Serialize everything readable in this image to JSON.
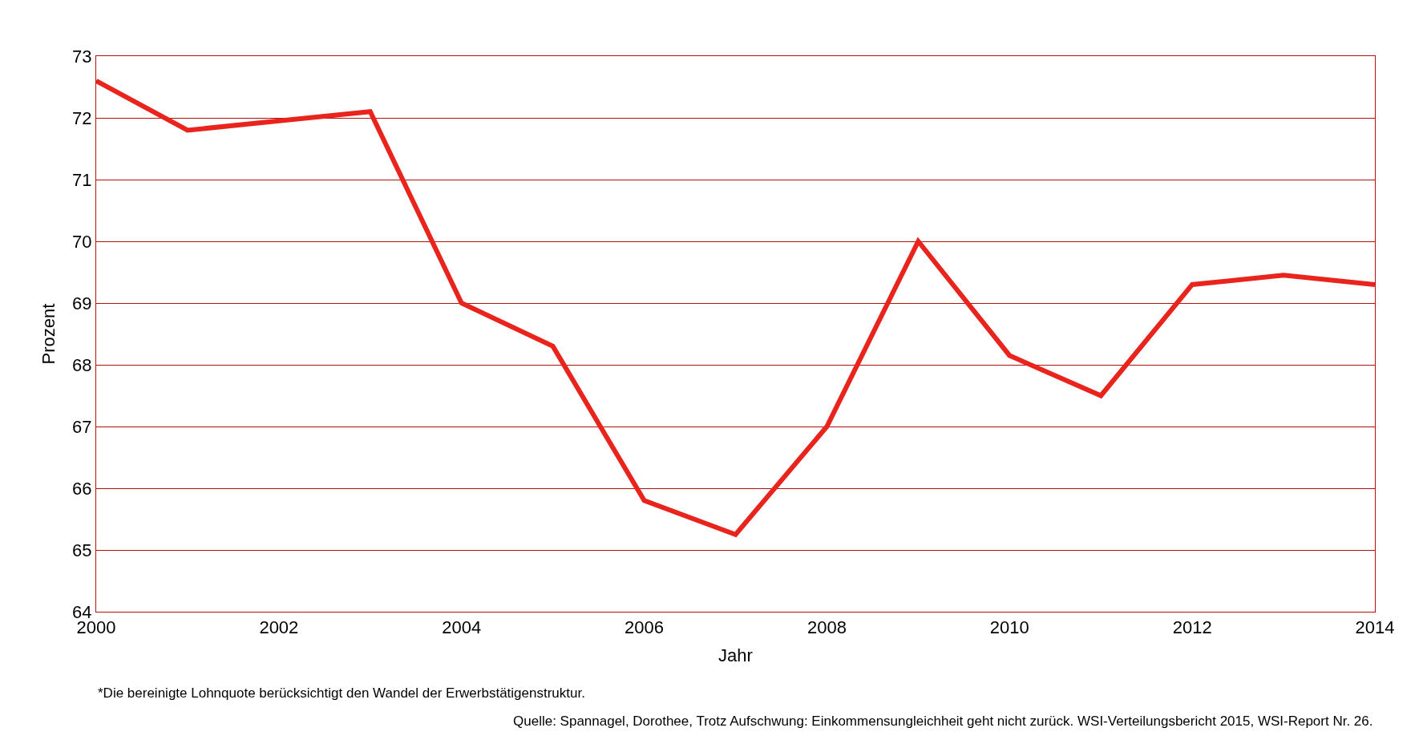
{
  "chart_data": {
    "type": "line",
    "xlabel": "Jahr",
    "ylabel": "Prozent",
    "x": [
      2000,
      2001,
      2002,
      2003,
      2004,
      2005,
      2006,
      2007,
      2008,
      2009,
      2010,
      2011,
      2012,
      2013,
      2014
    ],
    "series": [
      {
        "color": "#e8241c",
        "values": [
          72.6,
          71.8,
          71.95,
          72.1,
          69.0,
          68.3,
          65.8,
          65.25,
          67.0,
          70.0,
          68.15,
          67.5,
          69.3,
          69.45,
          69.3
        ]
      }
    ],
    "xlim": [
      2000,
      2014
    ],
    "xticks": [
      2000,
      2002,
      2004,
      2006,
      2008,
      2010,
      2012,
      2014
    ],
    "ylim": [
      64,
      73
    ],
    "yticks": [
      64,
      65,
      66,
      67,
      68,
      69,
      70,
      71,
      72,
      73
    ],
    "grid": "y",
    "marker": "none",
    "line_style": "solid",
    "annotations": [
      "*Die bereinigte Lohnquote berücksichtigt den Wandel der Erwerbstätigenstruktur.",
      "Quelle: Spannagel, Dorothee, Trotz Aufschwung: Einkommensungleichheit geht nicht zurück. WSI-Verteilungsbericht 2015, WSI-Report Nr. 26."
    ]
  }
}
